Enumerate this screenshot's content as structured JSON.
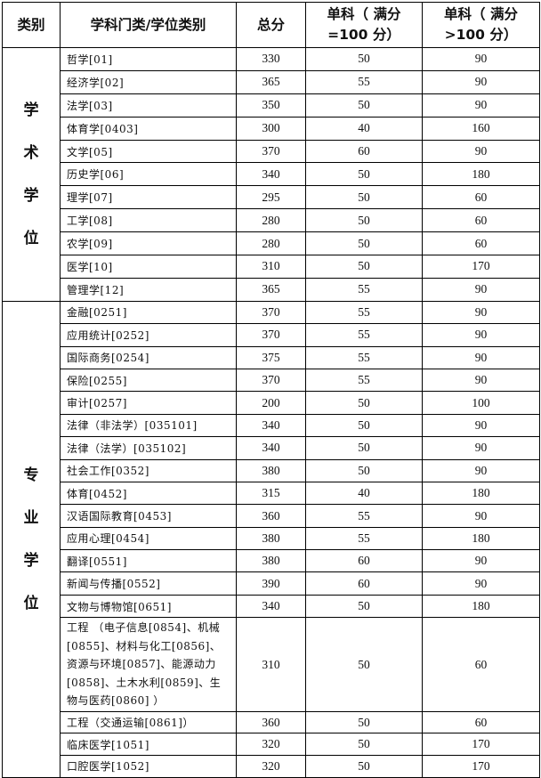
{
  "headers": [
    "类别",
    "学科门类/学位类别",
    "总分",
    "单科（ 满分=100 分）",
    "单科（ 满分>100 分）"
  ],
  "groups": [
    {
      "category": "学术学位",
      "rows": [
        {
          "name": "哲学[01]",
          "total": "330",
          "s100": "50",
          "sgt100": "90"
        },
        {
          "name": "经济学[02]",
          "total": "365",
          "s100": "55",
          "sgt100": "90"
        },
        {
          "name": "法学[03]",
          "total": "350",
          "s100": "50",
          "sgt100": "90"
        },
        {
          "name": "体育学[0403]",
          "total": "300",
          "s100": "40",
          "sgt100": "160"
        },
        {
          "name": "文学[05]",
          "total": "370",
          "s100": "60",
          "sgt100": "90"
        },
        {
          "name": "历史学[06]",
          "total": "340",
          "s100": "50",
          "sgt100": "180"
        },
        {
          "name": "理学[07]",
          "total": "295",
          "s100": "50",
          "sgt100": "60"
        },
        {
          "name": "工学[08]",
          "total": "280",
          "s100": "50",
          "sgt100": "60"
        },
        {
          "name": "农学[09]",
          "total": "280",
          "s100": "50",
          "sgt100": "60"
        },
        {
          "name": "医学[10]",
          "total": "310",
          "s100": "50",
          "sgt100": "170"
        },
        {
          "name": "管理学[12]",
          "total": "365",
          "s100": "55",
          "sgt100": "90"
        }
      ]
    },
    {
      "category": "专业学位",
      "rows": [
        {
          "name": "金融[0251]",
          "total": "370",
          "s100": "55",
          "sgt100": "90"
        },
        {
          "name": "应用统计[0252]",
          "total": "370",
          "s100": "55",
          "sgt100": "90"
        },
        {
          "name": "国际商务[0254]",
          "total": "375",
          "s100": "55",
          "sgt100": "90"
        },
        {
          "name": "保险[0255]",
          "total": "370",
          "s100": "55",
          "sgt100": "90"
        },
        {
          "name": "审计[0257]",
          "total": "200",
          "s100": "50",
          "sgt100": "100"
        },
        {
          "name": "法律（非法学）[035101]",
          "total": "340",
          "s100": "50",
          "sgt100": "90"
        },
        {
          "name": "法律（法学）[035102]",
          "total": "340",
          "s100": "50",
          "sgt100": "90"
        },
        {
          "name": "社会工作[0352]",
          "total": "380",
          "s100": "50",
          "sgt100": "90"
        },
        {
          "name": "体育[0452]",
          "total": "315",
          "s100": "40",
          "sgt100": "180"
        },
        {
          "name": "汉语国际教育[0453]",
          "total": "360",
          "s100": "55",
          "sgt100": "90"
        },
        {
          "name": "应用心理[0454]",
          "total": "380",
          "s100": "55",
          "sgt100": "180"
        },
        {
          "name": "翻译[0551]",
          "total": "380",
          "s100": "60",
          "sgt100": "90"
        },
        {
          "name": "新闻与传播[0552]",
          "total": "390",
          "s100": "60",
          "sgt100": "90"
        },
        {
          "name": "文物与博物馆[0651]",
          "total": "340",
          "s100": "50",
          "sgt100": "180"
        },
        {
          "name": "工程 （电子信息[0854]、机械[0855]、材料与化工[0856]、资源与环境[0857]、能源动力[0858]、土木水利[0859]、生物与医药[0860] ）",
          "total": "310",
          "s100": "50",
          "sgt100": "60",
          "multiline": true
        },
        {
          "name": "工程（交通运输[0861]）",
          "total": "360",
          "s100": "50",
          "sgt100": "60"
        },
        {
          "name": "临床医学[1051]",
          "total": "320",
          "s100": "50",
          "sgt100": "170"
        },
        {
          "name": "口腔医学[1052]",
          "total": "320",
          "s100": "50",
          "sgt100": "170"
        }
      ]
    }
  ]
}
